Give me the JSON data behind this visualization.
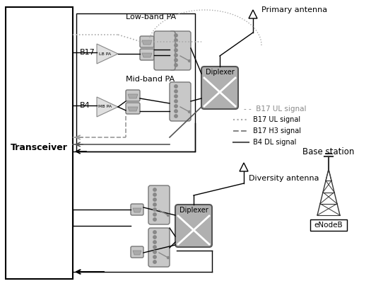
{
  "bg_color": "#ffffff",
  "transceiver_label": "Transceiver",
  "lowband_label": "Low-band PA",
  "midband_label": "Mid-band PA",
  "primary_antenna_label": "Primary antenna",
  "diversity_antenna_label": "Diversity antenna",
  "base_station_label": "Base station",
  "eNodeB_label": "eNodeB",
  "b17_label": "B17",
  "b4_label": "B4",
  "lb_pa_label": "LB PA",
  "mb_pa_label": "MB PA",
  "diplexer_label": "Diplexer",
  "legend_items": [
    {
      "label": " B17 UL signal",
      "style": "dotted"
    },
    {
      "label": " B17 H3 signal",
      "style": "dashed"
    },
    {
      "label": " B4 DL signal",
      "style": "solid"
    }
  ]
}
